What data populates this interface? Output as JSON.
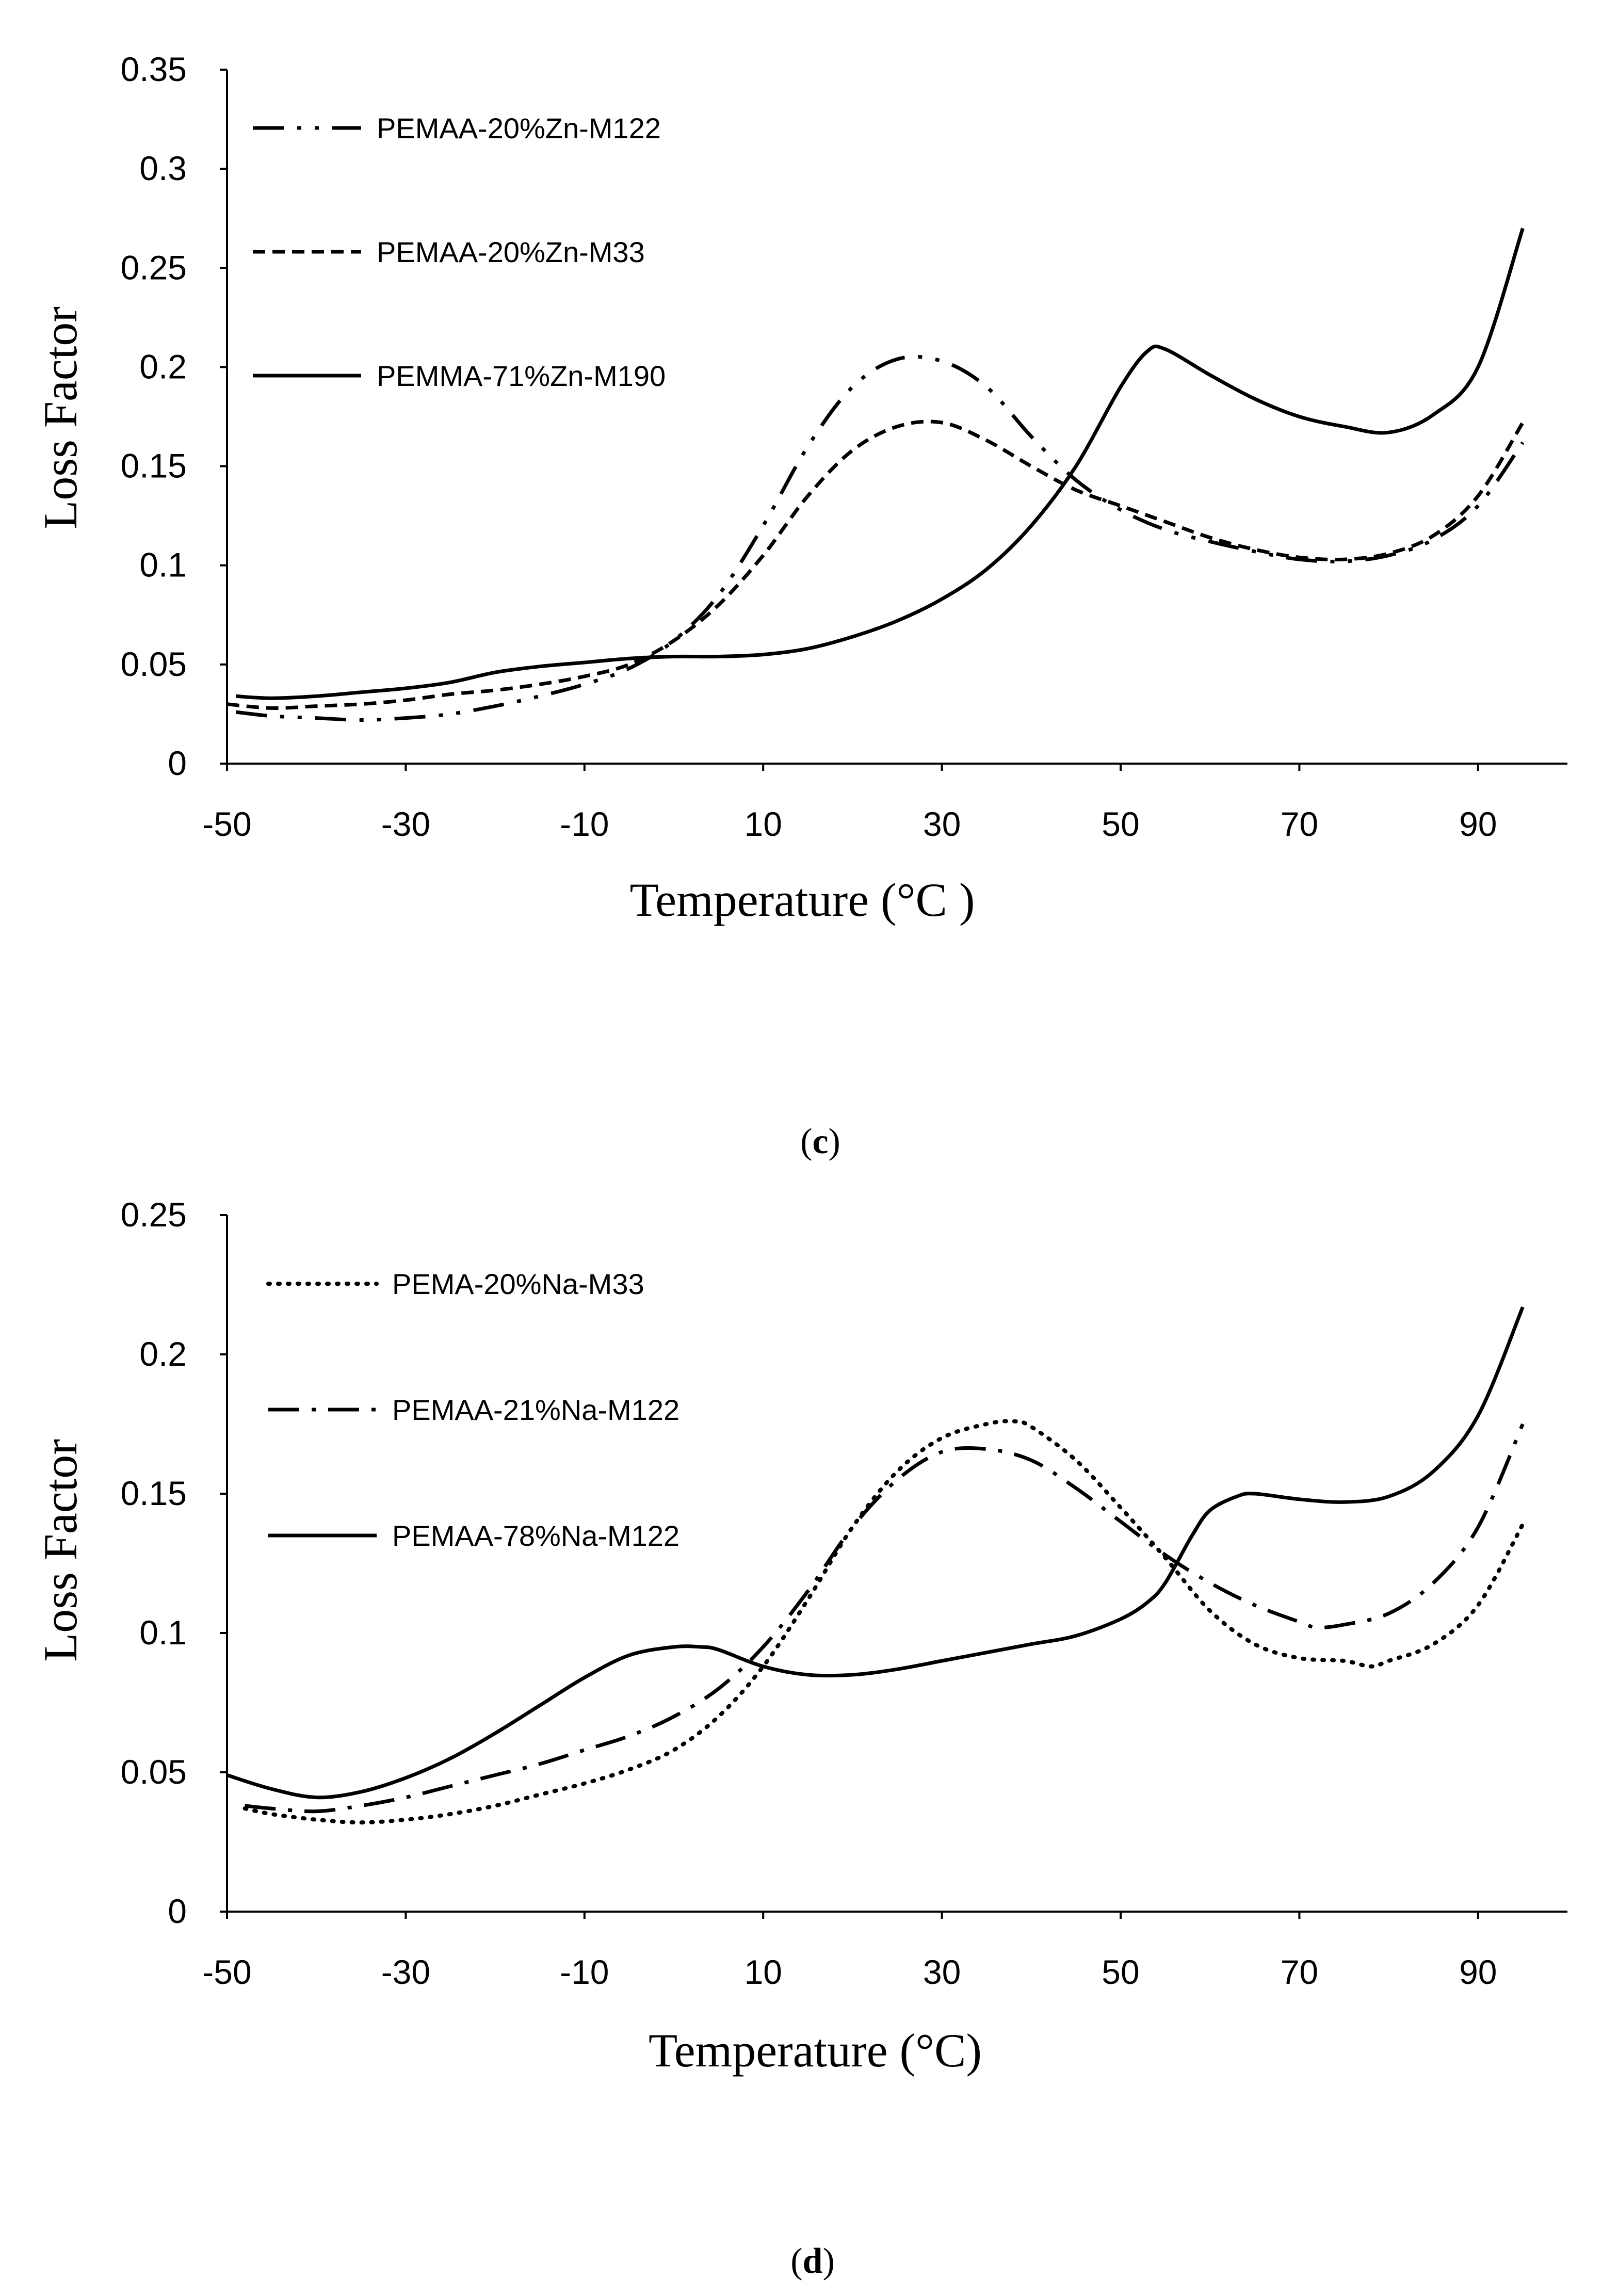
{
  "chart_data": [
    {
      "type": "line",
      "panel": "c",
      "xlabel": "Temperature (°C )",
      "ylabel": "Loss Factor",
      "xlim": [
        -50,
        100
      ],
      "ylim": [
        0,
        0.35
      ],
      "x_ticks": [
        -50,
        -30,
        -10,
        10,
        30,
        50,
        70,
        90
      ],
      "x_tick_labels": [
        "-50",
        "-30",
        "-10",
        "10",
        "30",
        "50",
        "70",
        "90"
      ],
      "y_ticks": [
        0,
        0.05,
        0.1,
        0.15,
        0.2,
        0.25,
        0.3,
        0.35
      ],
      "y_tick_labels": [
        "0",
        "0.05",
        "0.1",
        "0.15",
        "0.2",
        "0.25",
        "0.3",
        "0.35"
      ],
      "legend_position": "top-left",
      "series": [
        {
          "name": "PEMAA-20%Zn-M122",
          "dash": "long-dash-dot-dot",
          "x": [
            -49,
            -45,
            -40,
            -35,
            -30,
            -25,
            -20,
            -15,
            -10,
            -5,
            0,
            5,
            10,
            15,
            20,
            25,
            30,
            35,
            40,
            45,
            50,
            55,
            60,
            65,
            70,
            75,
            80,
            85,
            90,
            95
          ],
          "y": [
            0.026,
            0.024,
            0.023,
            0.022,
            0.023,
            0.025,
            0.029,
            0.034,
            0.04,
            0.048,
            0.062,
            0.085,
            0.12,
            0.16,
            0.19,
            0.204,
            0.203,
            0.19,
            0.165,
            0.143,
            0.128,
            0.118,
            0.112,
            0.107,
            0.103,
            0.102,
            0.105,
            0.113,
            0.13,
            0.162
          ]
        },
        {
          "name": "PEMAA-20%Zn-M33",
          "dash": "short-dash",
          "x": [
            -50,
            -45,
            -40,
            -35,
            -30,
            -25,
            -20,
            -15,
            -10,
            -5,
            0,
            5,
            10,
            15,
            20,
            25,
            30,
            35,
            40,
            45,
            50,
            55,
            60,
            65,
            70,
            75,
            80,
            85,
            90,
            95
          ],
          "y": [
            0.03,
            0.028,
            0.029,
            0.03,
            0.032,
            0.035,
            0.037,
            0.04,
            0.044,
            0.05,
            0.062,
            0.08,
            0.105,
            0.135,
            0.158,
            0.17,
            0.172,
            0.163,
            0.15,
            0.138,
            0.13,
            0.122,
            0.114,
            0.108,
            0.104,
            0.103,
            0.106,
            0.115,
            0.135,
            0.172
          ]
        },
        {
          "name": "PEMMA-71%Zn-M190",
          "dash": "solid",
          "x": [
            -49,
            -45,
            -40,
            -35,
            -30,
            -25,
            -20,
            -15,
            -10,
            -5,
            0,
            5,
            10,
            15,
            20,
            25,
            30,
            35,
            40,
            45,
            50,
            53,
            55,
            60,
            65,
            70,
            75,
            80,
            85,
            90,
            95
          ],
          "y": [
            0.034,
            0.033,
            0.034,
            0.036,
            0.038,
            0.041,
            0.046,
            0.049,
            0.051,
            0.053,
            0.054,
            0.054,
            0.055,
            0.058,
            0.064,
            0.072,
            0.083,
            0.098,
            0.12,
            0.15,
            0.19,
            0.208,
            0.209,
            0.196,
            0.184,
            0.175,
            0.17,
            0.167,
            0.176,
            0.2,
            0.27
          ]
        }
      ]
    },
    {
      "type": "line",
      "panel": "d",
      "xlabel": "Temperature (°C)",
      "ylabel": "Loss Factor",
      "xlim": [
        -50,
        100
      ],
      "ylim": [
        0,
        0.25
      ],
      "x_ticks": [
        -50,
        -30,
        -10,
        10,
        30,
        50,
        70,
        90
      ],
      "x_tick_labels": [
        "-50",
        "-30",
        "-10",
        "10",
        "30",
        "50",
        "70",
        "90"
      ],
      "y_ticks": [
        0,
        0.05,
        0.1,
        0.15,
        0.2,
        0.25
      ],
      "y_tick_labels": [
        "0",
        "0.05",
        "0.1",
        "0.15",
        "0.2",
        "0.25"
      ],
      "legend_position": "top-left",
      "series": [
        {
          "name": "PEMA-20%Na-M33",
          "dash": "dotted",
          "x": [
            -48,
            -45,
            -40,
            -35,
            -30,
            -25,
            -20,
            -15,
            -10,
            -5,
            0,
            5,
            10,
            15,
            20,
            25,
            30,
            35,
            38,
            40,
            45,
            50,
            55,
            60,
            65,
            70,
            75,
            78,
            80,
            85,
            90,
            95
          ],
          "y": [
            0.037,
            0.035,
            0.033,
            0.032,
            0.033,
            0.035,
            0.038,
            0.042,
            0.046,
            0.051,
            0.058,
            0.07,
            0.088,
            0.112,
            0.138,
            0.158,
            0.17,
            0.175,
            0.176,
            0.174,
            0.162,
            0.145,
            0.127,
            0.108,
            0.096,
            0.091,
            0.09,
            0.088,
            0.09,
            0.096,
            0.11,
            0.139
          ]
        },
        {
          "name": "PEMAA-21%Na-M122",
          "dash": "long-dash-dot",
          "x": [
            -48,
            -45,
            -40,
            -35,
            -30,
            -25,
            -20,
            -15,
            -10,
            -5,
            0,
            5,
            10,
            15,
            20,
            25,
            30,
            35,
            40,
            45,
            50,
            55,
            60,
            65,
            70,
            72,
            75,
            80,
            85,
            90,
            95
          ],
          "y": [
            0.038,
            0.037,
            0.036,
            0.038,
            0.041,
            0.045,
            0.049,
            0.053,
            0.058,
            0.063,
            0.07,
            0.08,
            0.095,
            0.115,
            0.138,
            0.155,
            0.165,
            0.166,
            0.162,
            0.152,
            0.14,
            0.128,
            0.118,
            0.11,
            0.104,
            0.102,
            0.103,
            0.107,
            0.118,
            0.138,
            0.175
          ]
        },
        {
          "name": "PEMAA-78%Na-M122",
          "dash": "solid",
          "x": [
            -50,
            -45,
            -40,
            -35,
            -30,
            -25,
            -20,
            -15,
            -10,
            -5,
            0,
            3,
            5,
            10,
            15,
            20,
            25,
            30,
            35,
            40,
            45,
            50,
            53,
            55,
            58,
            60,
            63,
            65,
            70,
            75,
            80,
            85,
            90,
            95
          ],
          "y": [
            0.049,
            0.044,
            0.041,
            0.043,
            0.048,
            0.055,
            0.064,
            0.074,
            0.084,
            0.092,
            0.095,
            0.095,
            0.094,
            0.088,
            0.085,
            0.085,
            0.087,
            0.09,
            0.093,
            0.096,
            0.099,
            0.105,
            0.111,
            0.118,
            0.135,
            0.144,
            0.149,
            0.15,
            0.148,
            0.147,
            0.149,
            0.158,
            0.178,
            0.217
          ]
        }
      ]
    }
  ],
  "panel_labels": [
    {
      "open": "(",
      "letter": "c",
      "close": ")"
    },
    {
      "open": "(",
      "letter": "d",
      "close": ")"
    }
  ]
}
